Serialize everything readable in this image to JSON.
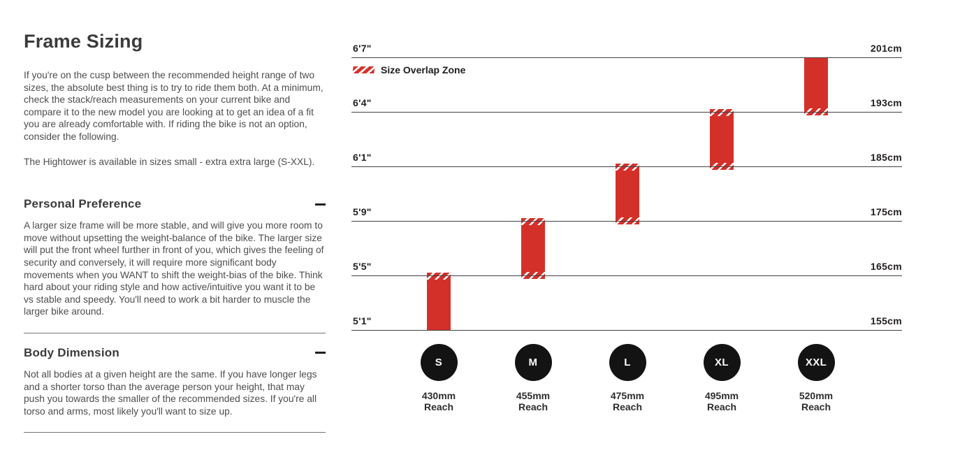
{
  "left_panel": {
    "heading": "Frame Sizing",
    "intro": "If you're on the cusp between the recommended height range of two sizes, the absolute best thing is to try to ride them both. At a minimum, check the stack/reach measurements on your current bike and compare it to the new model you are looking at to get an idea of a fit you are already comfortable with. If riding the bike is not an option, consider the following.",
    "availability": "The Hightower is available in sizes small - extra extra large (S-XXL).",
    "sections": [
      {
        "title": "Personal Preference",
        "toggle_state": "expanded",
        "body": "A larger size frame will be more stable, and will give you more room to move without upsetting the weight-balance of the bike. The larger size will put the front wheel further in front of you, which gives the feeling of security and conversely, it will require more significant body movements when you WANT to shift the weight-bias of the bike. Think hard about your riding style and how active/intuitive you want it to be vs stable and speedy. You'll need to work a bit harder to muscle the larger bike around."
      },
      {
        "title": "Body Dimension",
        "toggle_state": "expanded",
        "body": "Not all bodies at a given height are the same. If you have longer legs and a shorter torso than the average person your height, that may push you towards the smaller of the recommended sizes. If you're all torso and arms, most likely you'll want to size up."
      }
    ]
  },
  "chart_data": {
    "type": "range-bars",
    "title": "",
    "legend": {
      "label": "Size Overlap Zone",
      "swatch": "red-white-diagonal-hatch",
      "position": "top-left"
    },
    "accent_color": "#d4302a",
    "badge_color": "#131313",
    "reach_word": "Reach",
    "height_lines": [
      {
        "imperial": "6'7\"",
        "metric": "201cm"
      },
      {
        "imperial": "6'4\"",
        "metric": "193cm"
      },
      {
        "imperial": "6'1\"",
        "metric": "185cm"
      },
      {
        "imperial": "5'9\"",
        "metric": "175cm"
      },
      {
        "imperial": "5'5\"",
        "metric": "165cm"
      },
      {
        "imperial": "5'1\"",
        "metric": "155cm"
      }
    ],
    "sizes": [
      {
        "label": "S",
        "reach": "430mm",
        "height_range_imperial": "5'1\" - 5'5\"",
        "height_range_metric": "155cm - 165cm",
        "band": [
          4,
          5
        ],
        "overlap_top": true,
        "overlap_bottom": false
      },
      {
        "label": "M",
        "reach": "455mm",
        "height_range_imperial": "5'5\" - 5'9\"",
        "height_range_metric": "165cm - 175cm",
        "band": [
          3,
          4
        ],
        "overlap_top": true,
        "overlap_bottom": true
      },
      {
        "label": "L",
        "reach": "475mm",
        "height_range_imperial": "5'9\" - 6'1\"",
        "height_range_metric": "175cm - 185cm",
        "band": [
          2,
          3
        ],
        "overlap_top": true,
        "overlap_bottom": true
      },
      {
        "label": "XL",
        "reach": "495mm",
        "height_range_imperial": "6'1\" - 6'4\"",
        "height_range_metric": "185cm - 193cm",
        "band": [
          1,
          2
        ],
        "overlap_top": true,
        "overlap_bottom": true
      },
      {
        "label": "XXL",
        "reach": "520mm",
        "height_range_imperial": "6'4\" - 6'7\"",
        "height_range_metric": "193cm - 201cm",
        "band": [
          0,
          1
        ],
        "overlap_top": false,
        "overlap_bottom": true
      }
    ]
  }
}
